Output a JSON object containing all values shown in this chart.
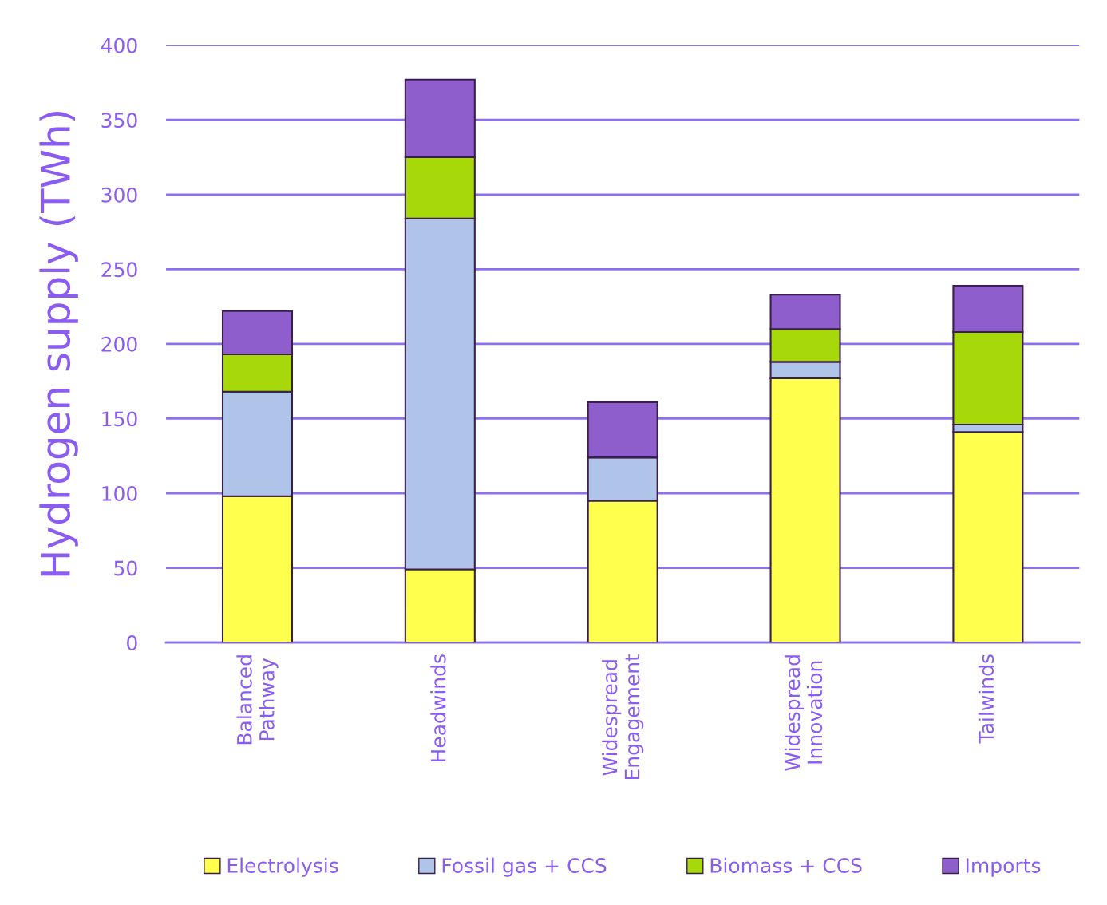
{
  "chart_data": {
    "type": "bar",
    "stacked": true,
    "ylabel": "Hydrogen supply (TWh)",
    "categories": [
      "Balanced\nPathway",
      "Headwinds",
      "Widespread\nEngagement",
      "Widespread\nInnovation",
      "Tailwinds"
    ],
    "series": [
      {
        "name": "Electrolysis",
        "color": "#ffff4d",
        "values": [
          98,
          49,
          95,
          177,
          141
        ]
      },
      {
        "name": "Fossil gas + CCS",
        "color": "#b0c4ea",
        "values": [
          70,
          235,
          29,
          11,
          5
        ]
      },
      {
        "name": "Biomass + CCS",
        "color": "#a6d80a",
        "values": [
          25,
          41,
          0,
          22,
          62
        ]
      },
      {
        "name": "Imports",
        "color": "#8e5fcc",
        "values": [
          29,
          52,
          37,
          23,
          31
        ]
      }
    ],
    "ylim": [
      0,
      400
    ],
    "yticks": [
      0,
      50,
      100,
      150,
      200,
      250,
      300,
      350,
      400
    ],
    "grid": "y",
    "legend": "bottom"
  }
}
